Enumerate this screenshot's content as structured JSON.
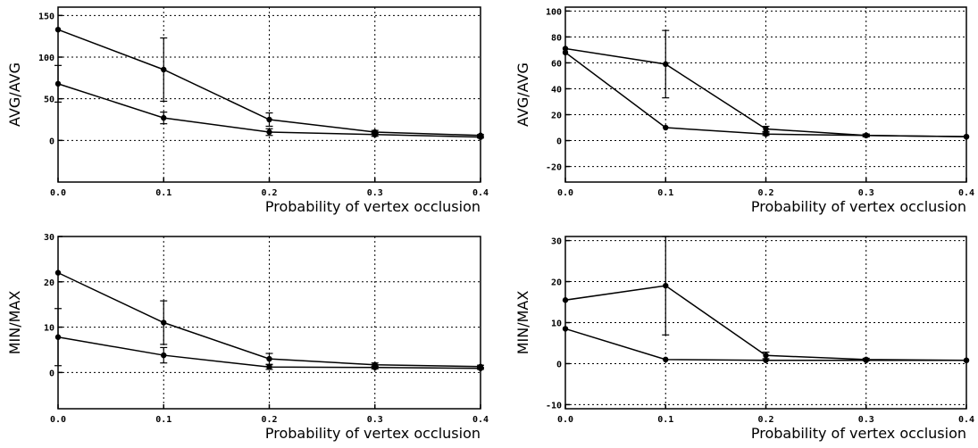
{
  "chart_data": [
    {
      "type": "line",
      "xlabel": "Probability of vertex occlusion",
      "ylabel": "AVG/AVG",
      "x": [
        0.0,
        0.1,
        0.2,
        0.3,
        0.4
      ],
      "xlim": [
        0.0,
        0.4
      ],
      "ylim": [
        -50,
        160
      ],
      "xticks": [
        0.0,
        0.1,
        0.2,
        0.3,
        0.4
      ],
      "xtick_labels": [
        "0.0",
        "0.1",
        "0.2",
        "0.3",
        "0.4"
      ],
      "yticks": [
        0,
        50,
        100,
        150
      ],
      "ytick_labels": [
        "0",
        "50",
        "100",
        "150"
      ],
      "grid": true,
      "series": [
        {
          "values": [
            133,
            85,
            25,
            10,
            6
          ],
          "errors": [
            0,
            38,
            8,
            2,
            1
          ]
        },
        {
          "values": [
            68,
            27,
            10,
            7,
            4
          ],
          "errors": [
            22,
            7,
            4,
            2,
            1
          ]
        }
      ]
    },
    {
      "type": "line",
      "xlabel": "Probability of vertex occlusion",
      "ylabel": "AVG/AVG",
      "x": [
        0.0,
        0.1,
        0.2,
        0.3,
        0.4
      ],
      "xlim": [
        0.0,
        0.4
      ],
      "ylim": [
        -32,
        103
      ],
      "xticks": [
        0.0,
        0.1,
        0.2,
        0.3,
        0.4
      ],
      "xtick_labels": [
        "0.0",
        "0.1",
        "0.2",
        "0.3",
        "0.4"
      ],
      "yticks": [
        -20,
        0,
        20,
        40,
        60,
        80,
        100
      ],
      "ytick_labels": [
        "-20",
        "0",
        "20",
        "40",
        "60",
        "80",
        "100"
      ],
      "grid": true,
      "series": [
        {
          "values": [
            71,
            59,
            9,
            4,
            3
          ],
          "errors": [
            0,
            26,
            2,
            1,
            0
          ]
        },
        {
          "values": [
            68,
            10,
            5,
            4,
            3
          ],
          "errors": [
            0,
            0,
            1,
            1,
            0
          ]
        }
      ]
    },
    {
      "type": "line",
      "xlabel": "Probability of vertex occlusion",
      "ylabel": "MIN/MAX",
      "x": [
        0.0,
        0.1,
        0.2,
        0.3,
        0.4
      ],
      "xlim": [
        0.0,
        0.4
      ],
      "ylim": [
        -8,
        30
      ],
      "xticks": [
        0.0,
        0.1,
        0.2,
        0.3,
        0.4
      ],
      "xtick_labels": [
        "0.0",
        "0.1",
        "0.2",
        "0.3",
        "0.4"
      ],
      "yticks": [
        0,
        10,
        20,
        30
      ],
      "ytick_labels": [
        "0",
        "10",
        "20",
        "30"
      ],
      "grid": true,
      "series": [
        {
          "values": [
            22,
            11,
            3,
            1.7,
            1.3
          ],
          "errors": [
            0,
            4.8,
            1.2,
            0.4,
            0.3
          ]
        },
        {
          "values": [
            7.8,
            3.8,
            1.2,
            1.1,
            0.9
          ],
          "errors": [
            6.3,
            1.7,
            0.5,
            0.3,
            0.2
          ]
        }
      ]
    },
    {
      "type": "line",
      "xlabel": "Probability of vertex occlusion",
      "ylabel": "MIN/MAX",
      "x": [
        0.0,
        0.1,
        0.2,
        0.3,
        0.4
      ],
      "xlim": [
        0.0,
        0.4
      ],
      "ylim": [
        -11,
        31
      ],
      "xticks": [
        0.0,
        0.1,
        0.2,
        0.3,
        0.4
      ],
      "xtick_labels": [
        "0.0",
        "0.1",
        "0.2",
        "0.3",
        "0.4"
      ],
      "yticks": [
        -10,
        0,
        10,
        20,
        30
      ],
      "ytick_labels": [
        "-10",
        "0",
        "10",
        "20",
        "30"
      ],
      "grid": true,
      "series": [
        {
          "values": [
            15.5,
            19,
            2,
            1,
            0.8
          ],
          "errors": [
            0,
            12,
            0.8,
            0.3,
            0
          ]
        },
        {
          "values": [
            8.5,
            1,
            0.8,
            0.8,
            0.8
          ],
          "errors": [
            0,
            0,
            0,
            0,
            0
          ]
        }
      ]
    }
  ]
}
